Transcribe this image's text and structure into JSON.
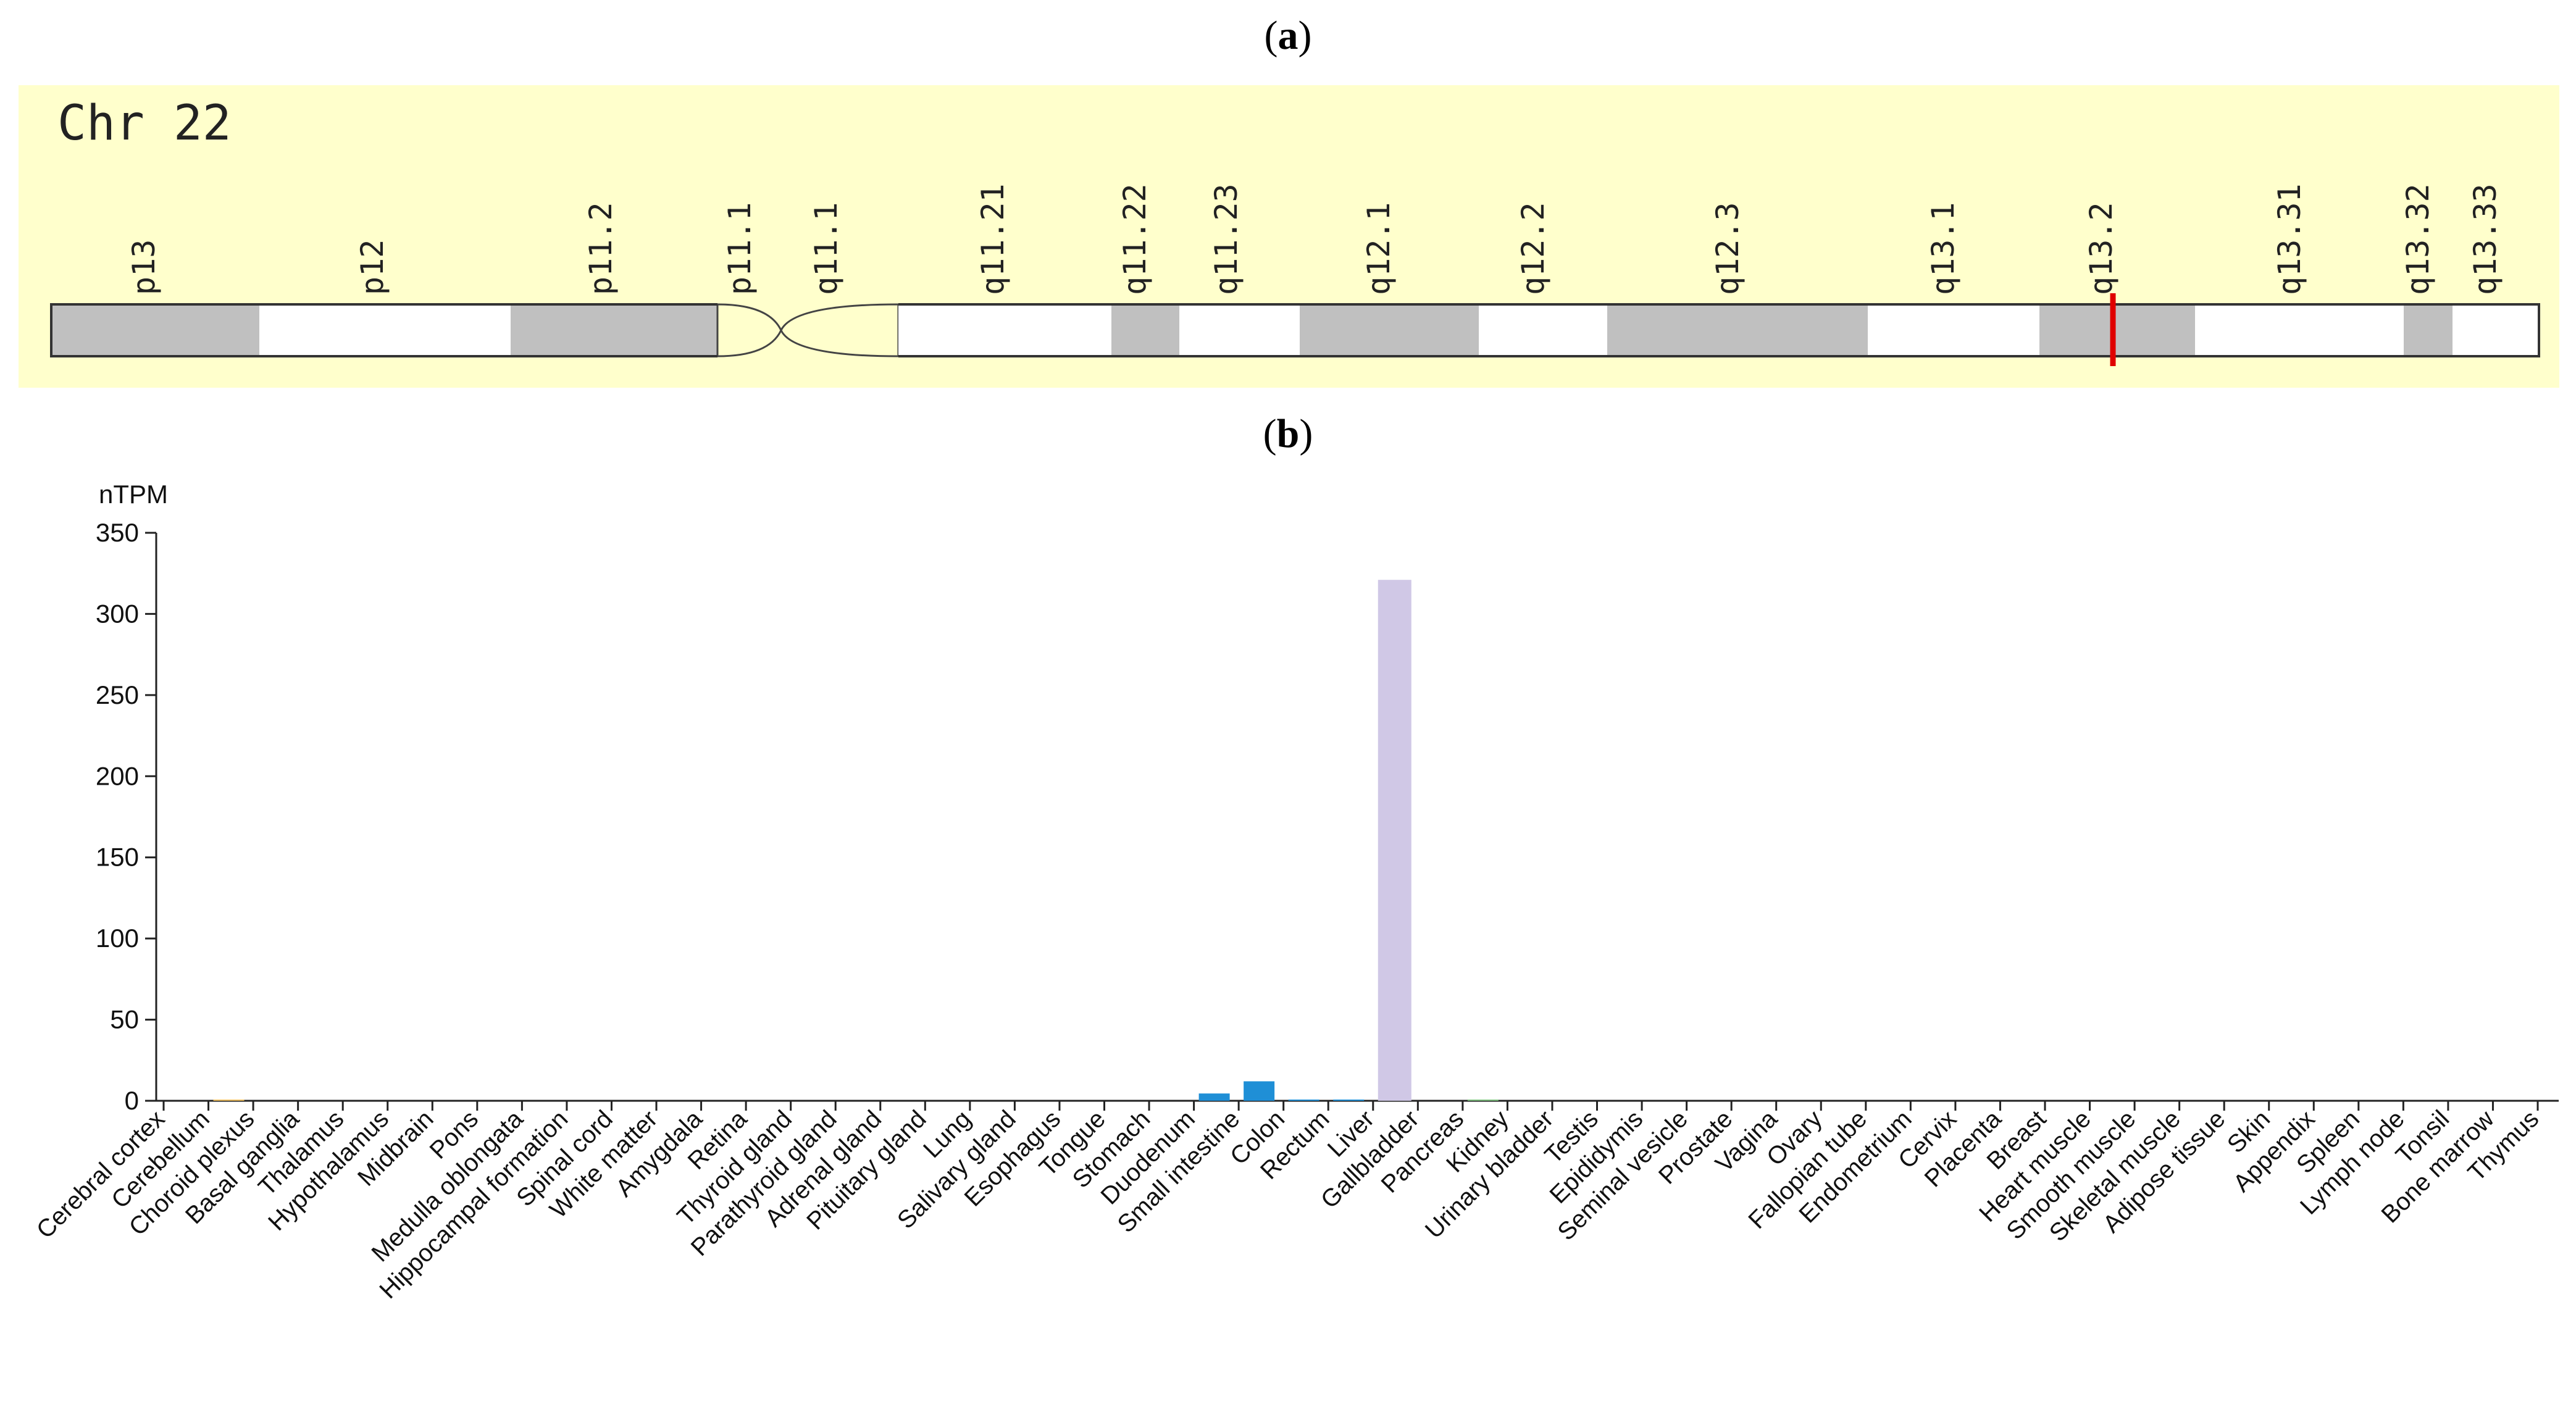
{
  "panel_a": {
    "label": "a",
    "title": "Chr 22"
  },
  "panel_b": {
    "label": "b"
  },
  "ideogram": {
    "colors": {
      "background": "#ffffcc",
      "gpos": "#c0c0c0",
      "gneg": "#ffffff",
      "marker": "#e00000"
    },
    "bands": [
      {
        "name": "p13",
        "stain": "gpos"
      },
      {
        "name": "p12",
        "stain": "gneg"
      },
      {
        "name": "p11.2",
        "stain": "gpos"
      },
      {
        "name": "p11.1",
        "stain": "acen"
      },
      {
        "name": "q11.1",
        "stain": "acen"
      },
      {
        "name": "q11.21",
        "stain": "gneg"
      },
      {
        "name": "q11.22",
        "stain": "gpos"
      },
      {
        "name": "q11.23",
        "stain": "gneg"
      },
      {
        "name": "q12.1",
        "stain": "gpos"
      },
      {
        "name": "q12.2",
        "stain": "gneg"
      },
      {
        "name": "q12.3",
        "stain": "gpos"
      },
      {
        "name": "q13.1",
        "stain": "gneg"
      },
      {
        "name": "q13.2",
        "stain": "gpos"
      },
      {
        "name": "q13.31",
        "stain": "gneg"
      },
      {
        "name": "q13.32",
        "stain": "gpos"
      },
      {
        "name": "q13.33",
        "stain": "gneg"
      }
    ],
    "marker_band": "q13.2"
  },
  "chart_data": {
    "type": "bar",
    "ylabel": "nTPM",
    "ylim": [
      0,
      350
    ],
    "yticks": [
      0,
      50,
      100,
      150,
      200,
      250,
      300,
      350
    ],
    "categories": [
      "Cerebral cortex",
      "Cerebellum",
      "Choroid plexus",
      "Basal ganglia",
      "Thalamus",
      "Hypothalamus",
      "Midbrain",
      "Pons",
      "Medulla oblongata",
      "Hippocampal formation",
      "Spinal cord",
      "White matter",
      "Amygdala",
      "Retina",
      "Thyroid gland",
      "Parathyroid gland",
      "Adrenal gland",
      "Pituitary gland",
      "Lung",
      "Salivary gland",
      "Esophagus",
      "Tongue",
      "Stomach",
      "Duodenum",
      "Small intestine",
      "Colon",
      "Rectum",
      "Liver",
      "Gallbladder",
      "Pancreas",
      "Kidney",
      "Urinary bladder",
      "Testis",
      "Epididymis",
      "Seminal vesicle",
      "Prostate",
      "Vagina",
      "Ovary",
      "Fallopian tube",
      "Endometrium",
      "Cervix",
      "Placenta",
      "Breast",
      "Heart muscle",
      "Smooth muscle",
      "Skeletal muscle",
      "Adipose tissue",
      "Skin",
      "Appendix",
      "Spleen",
      "Lymph node",
      "Tonsil",
      "Bone marrow",
      "Thymus"
    ],
    "values": [
      0,
      0.3,
      0,
      0,
      0,
      0,
      0,
      0,
      0,
      0,
      0,
      0,
      0,
      0,
      0,
      0,
      0,
      0,
      0,
      0,
      0,
      0,
      0,
      4.5,
      12,
      0.5,
      0.3,
      321,
      0,
      0.4,
      0,
      0,
      0,
      0,
      0,
      0,
      0,
      0,
      0,
      0,
      0,
      0,
      0,
      0,
      0,
      0,
      0,
      0,
      0,
      0,
      0,
      0,
      0,
      0
    ],
    "colors": {
      "default": "#1f8fd6",
      "brain": "#f0c060",
      "liver": "#d0c8e6",
      "pancreas": "#7fc27f"
    }
  }
}
